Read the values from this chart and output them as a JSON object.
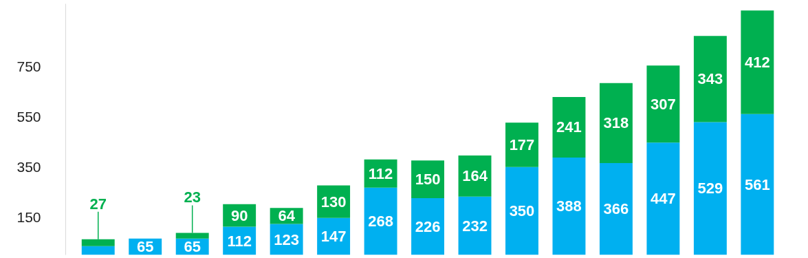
{
  "chart_data": {
    "type": "bar",
    "stacked": true,
    "categories": [
      null,
      null,
      null,
      null,
      null,
      null,
      null,
      null,
      null,
      null,
      null,
      null,
      null,
      null,
      null
    ],
    "series": [
      {
        "color": "#00b0f0",
        "values": [
          35,
          65,
          65,
          112,
          123,
          147,
          268,
          226,
          232,
          350,
          388,
          366,
          447,
          529,
          561
        ],
        "value_labels": [
          null,
          "65",
          "65",
          "112",
          "123",
          "147",
          "268",
          "226",
          "232",
          "350",
          "388",
          "366",
          "447",
          "529",
          "561"
        ]
      },
      {
        "color": "#00b050",
        "values": [
          27,
          null,
          23,
          90,
          64,
          130,
          112,
          150,
          164,
          177,
          241,
          318,
          307,
          343,
          412
        ],
        "value_labels": [
          "27",
          null,
          "23",
          "90",
          "64",
          "130",
          "112",
          "150",
          "164",
          "177",
          "241",
          "318",
          "307",
          "343",
          "412"
        ]
      }
    ],
    "ylim": [
      0,
      1000
    ],
    "yticks": [
      150,
      350,
      550,
      750
    ],
    "grid": false,
    "tick_labels": "y"
  }
}
